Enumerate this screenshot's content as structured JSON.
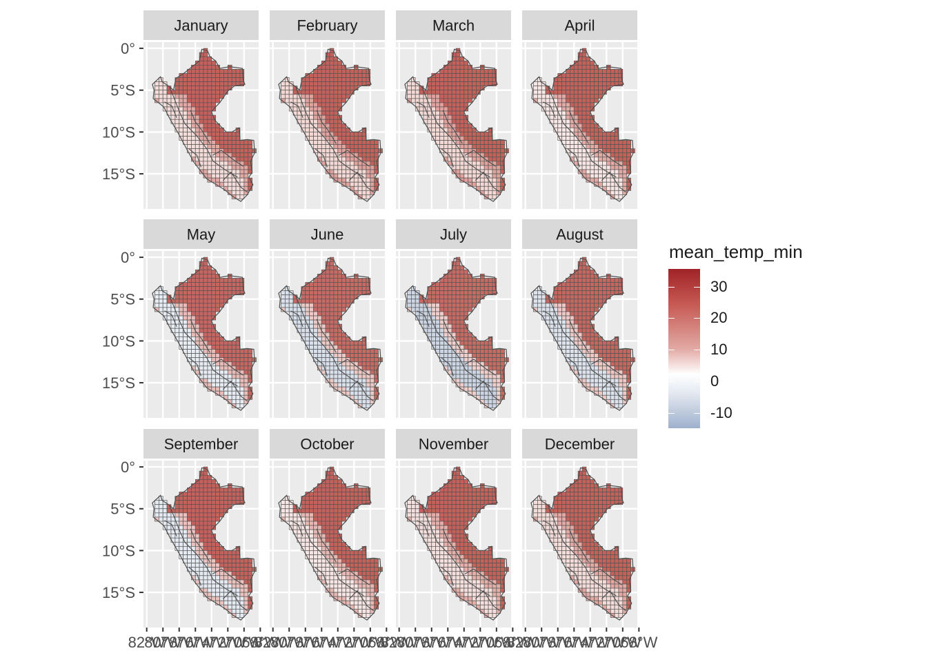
{
  "panels": [
    {
      "month": "January",
      "lowland": "#c4615a",
      "coast": "#e2a8a3",
      "andes": "#f4dcd9"
    },
    {
      "month": "February",
      "lowland": "#c4615a",
      "coast": "#e0a29c",
      "andes": "#f3d8d4"
    },
    {
      "month": "March",
      "lowland": "#c4615a",
      "coast": "#e0a29c",
      "andes": "#f3d8d4"
    },
    {
      "month": "April",
      "lowland": "#c4615a",
      "coast": "#e3aaa5",
      "andes": "#f7e6e4"
    },
    {
      "month": "May",
      "lowland": "#c56660",
      "coast": "#e9bcb8",
      "andes": "#e7ecf3"
    },
    {
      "month": "June",
      "lowland": "#c66a63",
      "coast": "#edc9c5",
      "andes": "#d8e0eb"
    },
    {
      "month": "July",
      "lowland": "#c66b64",
      "coast": "#efcfcc",
      "andes": "#cbd5e3"
    },
    {
      "month": "August",
      "lowland": "#c56660",
      "coast": "#edc8c4",
      "andes": "#dce3ed"
    },
    {
      "month": "September",
      "lowland": "#c4615a",
      "coast": "#ebc2be",
      "andes": "#e5eaf2"
    },
    {
      "month": "October",
      "lowland": "#c4615a",
      "coast": "#e7b7b2",
      "andes": "#f6e5e3"
    },
    {
      "month": "November",
      "lowland": "#c4615a",
      "coast": "#e4aea9",
      "andes": "#f5dfdc"
    },
    {
      "month": "December",
      "lowland": "#c4615a",
      "coast": "#e2a8a3",
      "andes": "#f4dcd9"
    }
  ],
  "y_axis": {
    "ticks": [
      0,
      -5,
      -10,
      -15
    ],
    "labels": [
      "0°",
      "5°S",
      "10°S",
      "15°S"
    ]
  },
  "x_axis": {
    "ticks": [
      -82,
      -80,
      -78,
      -76,
      -74,
      -72,
      -70,
      -68
    ],
    "labels": [
      "82°W",
      "80°W",
      "78°W",
      "76°W",
      "74°W",
      "72°W",
      "70°W",
      "68°W"
    ]
  },
  "legend": {
    "title": "mean_temp_min",
    "ticks": [
      30,
      20,
      10,
      0,
      -10
    ],
    "labels": [
      "30",
      "20",
      "10",
      "0",
      "-10"
    ],
    "gradient": [
      "#a02327",
      "#c65953",
      "#e2a8a3",
      "#ffffff",
      "#9eb1cc"
    ]
  },
  "colors": {
    "panel_bg": "#ebebeb",
    "strip_bg": "#d9d9d9",
    "grid": "#ffffff",
    "cell_border": "#555555",
    "boundary": "#4d4d4d"
  }
}
